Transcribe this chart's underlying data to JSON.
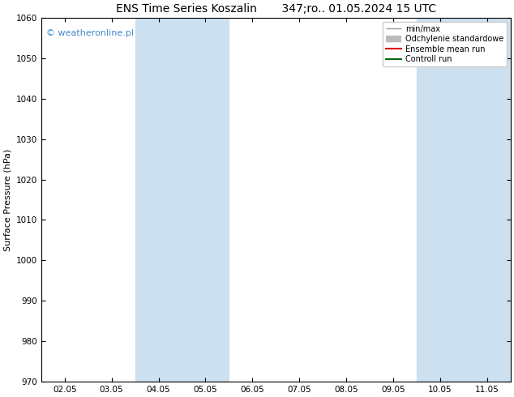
{
  "title": "ENS Time Series Koszalin       347;ro.. 01.05.2024 15 UTC",
  "ylabel": "Surface Pressure (hPa)",
  "ylim": [
    970,
    1060
  ],
  "yticks": [
    970,
    980,
    990,
    1000,
    1010,
    1020,
    1030,
    1040,
    1050,
    1060
  ],
  "xtick_labels": [
    "02.05",
    "03.05",
    "04.05",
    "05.05",
    "06.05",
    "07.05",
    "08.05",
    "09.05",
    "10.05",
    "11.05"
  ],
  "background_color": "#ffffff",
  "plot_bg_color": "#ffffff",
  "shaded_bands": [
    {
      "xmin": 2,
      "xmax": 4,
      "color": "#cce0f0"
    },
    {
      "xmin": 8,
      "xmax": 10,
      "color": "#cce0f0"
    }
  ],
  "watermark_text": "© weatheronline.pl",
  "watermark_color": "#4488cc",
  "legend_entries": [
    {
      "label": "min/max",
      "color": "#999999",
      "lw": 1.0
    },
    {
      "label": "Odchylenie standardowe",
      "color": "#bbbbbb",
      "lw": 6
    },
    {
      "label": "Ensemble mean run",
      "color": "#dd0000",
      "lw": 1.5
    },
    {
      "label": "Controll run",
      "color": "#006600",
      "lw": 1.5
    }
  ],
  "title_fontsize": 10,
  "axis_label_fontsize": 8,
  "tick_fontsize": 7.5,
  "watermark_fontsize": 8
}
